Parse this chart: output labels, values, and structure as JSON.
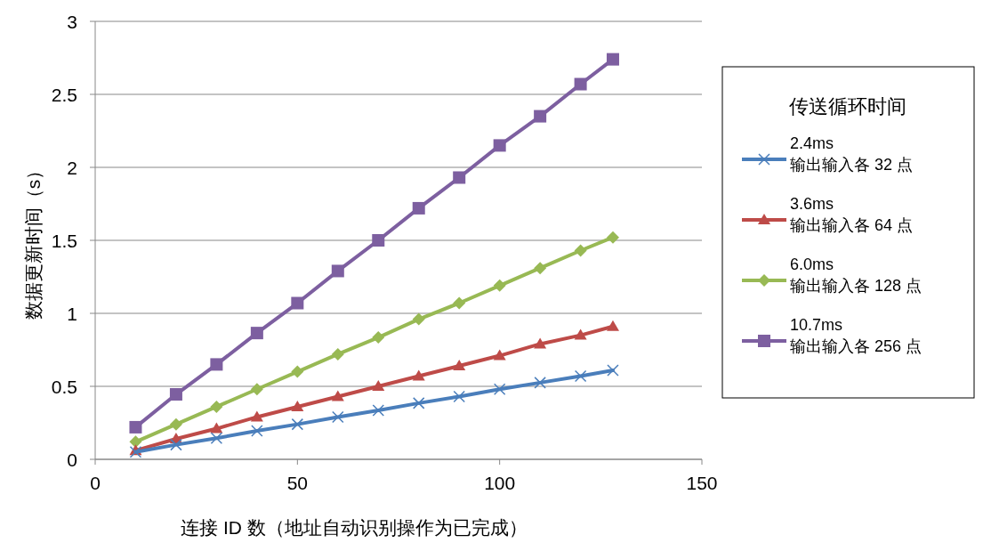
{
  "chart_data": {
    "type": "line",
    "xlabel": "连接 ID 数（地址自动识别操作为已完成）",
    "ylabel": "数据更新时间（s）",
    "legend_title": "传送循环时间",
    "legend": "right",
    "grid": "y",
    "x": [
      10,
      20,
      30,
      40,
      50,
      60,
      70,
      80,
      90,
      100,
      110,
      120,
      128
    ],
    "xlim": [
      0,
      150
    ],
    "xticks": [
      0,
      50,
      100,
      150
    ],
    "ylim": [
      0,
      3
    ],
    "yticks": [
      0,
      {
        "value": 0.5,
        "label": "0.5"
      },
      1,
      {
        "value": 1.5,
        "label": "1.5"
      },
      2,
      {
        "value": 2.5,
        "label": "2.5"
      },
      3
    ],
    "series": [
      {
        "name": "2.4ms\n输出输入各 32 点",
        "color": "#4a7ebb",
        "marker": "cross",
        "values": [
          0.05,
          0.1,
          0.145,
          0.195,
          0.24,
          0.29,
          0.335,
          0.385,
          0.43,
          0.48,
          0.525,
          0.57,
          0.61
        ]
      },
      {
        "name": "3.6ms\n输出输入各 64 点",
        "color": "#be4b48",
        "marker": "triangle",
        "values": [
          0.06,
          0.14,
          0.21,
          0.29,
          0.36,
          0.43,
          0.5,
          0.57,
          0.64,
          0.71,
          0.79,
          0.85,
          0.91
        ]
      },
      {
        "name": "6.0ms\n输出输入各 128 点",
        "color": "#98b954",
        "marker": "diamond",
        "values": [
          0.12,
          0.24,
          0.36,
          0.48,
          0.6,
          0.72,
          0.835,
          0.96,
          1.07,
          1.19,
          1.31,
          1.43,
          1.52
        ]
      },
      {
        "name": "10.7ms\n输出输入各 256 点",
        "color": "#7d5fa0",
        "marker": "square",
        "values": [
          0.22,
          0.445,
          0.65,
          0.865,
          1.07,
          1.29,
          1.5,
          1.72,
          1.93,
          2.15,
          2.35,
          2.57,
          2.74
        ]
      }
    ]
  }
}
